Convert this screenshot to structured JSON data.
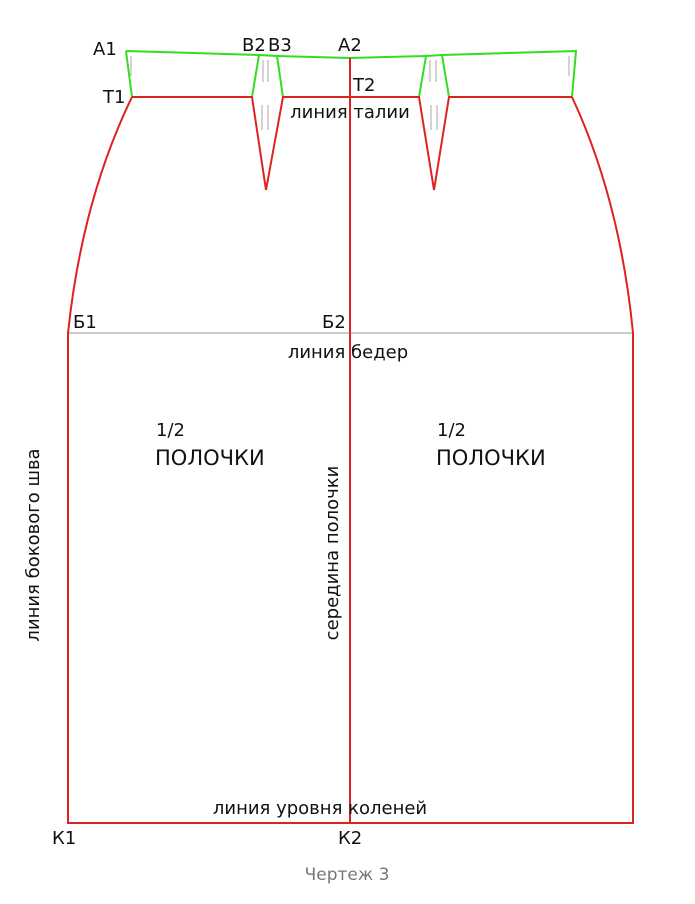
{
  "points": [
    "А1",
    "В2",
    "В3",
    "А2",
    "Т1",
    "Т2",
    "Б1",
    "Б2",
    "К1",
    "К2"
  ],
  "lines": {
    "waist": "линия талии",
    "hips": "линия бедер",
    "knees": "линия уровня коленей",
    "side_seam": "линия бокового шва",
    "center": "середина полочки"
  },
  "panels": [
    {
      "fraction": "1/2",
      "name": "ПОЛОЧКИ"
    },
    {
      "fraction": "1/2",
      "name": "ПОЛОЧКИ"
    }
  ],
  "caption": "Чертеж 3"
}
